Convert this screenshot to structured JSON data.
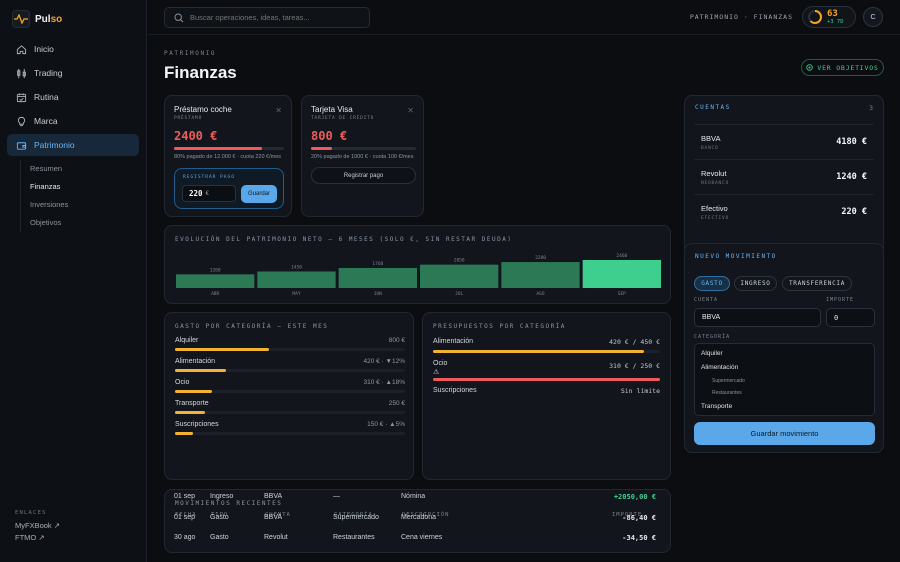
{
  "brand": {
    "name_prefix": "Pul",
    "name_suffix": "so"
  },
  "sidebar": {
    "nav": [
      {
        "label": "Inicio",
        "icon": "home-icon"
      },
      {
        "label": "Trading",
        "icon": "candlestick-icon"
      },
      {
        "label": "Rutina",
        "icon": "calendar-icon"
      },
      {
        "label": "Marca",
        "icon": "lightbulb-icon"
      },
      {
        "label": "Patrimonio",
        "icon": "wallet-icon",
        "active": true
      }
    ],
    "subnav": [
      {
        "label": "Resumen"
      },
      {
        "label": "Finanzas",
        "active": true
      },
      {
        "label": "Inversiones"
      },
      {
        "label": "Objetivos"
      }
    ],
    "links_title": "ENLACES",
    "links": [
      "MyFXBook ↗",
      "FTMO ↗"
    ]
  },
  "topbar": {
    "search_placeholder": "Buscar operaciones, ideas, tareas...",
    "breadcrumb": "PATRIMONIO · FINANZAS",
    "streak_value": "63",
    "streak_delta": "+3 7D",
    "streak_progress": 0.63,
    "avatar_initial": "C"
  },
  "header": {
    "eyebrow": "PATRIMONIO",
    "title": "Finanzas",
    "goals_button": "VER OBJETIVOS"
  },
  "debts": [
    {
      "name": "Préstamo coche",
      "kind": "PRÉSTAMO",
      "amount": "2400 €",
      "paid_fraction": 0.8,
      "detail": "80% pagado de 12.000 € · cuota 220 €/mes",
      "register_label": "REGISTRAR PAGO",
      "input_value": "220",
      "currency": "€",
      "save_label": "Guardar"
    },
    {
      "name": "Tarjeta Visa",
      "kind": "TARJETA DE CRÉDITO",
      "amount": "800 €",
      "paid_fraction": 0.2,
      "detail": "20% pagado de 1000 € · cuota 100 €/mes",
      "button_label": "Registrar pago"
    }
  ],
  "net_worth": {
    "title": "EVOLUCIÓN DEL PATRIMONIO NETO — 6 MESES (SOLO €, SIN RESTAR DEUDA)"
  },
  "chart_data": {
    "type": "bar",
    "title": "EVOLUCIÓN DEL PATRIMONIO NETO — 6 MESES (SOLO €, SIN RESTAR DEUDA)",
    "categories": [
      "ABR",
      "MAY",
      "JUN",
      "JUL",
      "AGO",
      "SEP"
    ],
    "values": [
      1200,
      1450,
      1760,
      2050,
      2280,
      2460
    ],
    "value_labels": [
      "1200",
      "1450",
      "1760",
      "2050",
      "2280",
      "2460"
    ],
    "colors": [
      "#2b7a55",
      "#2b7a55",
      "#2b7a55",
      "#2b7a55",
      "#2b7a55",
      "#3ecf8e"
    ],
    "xlabel": "",
    "ylabel": ""
  },
  "spending": {
    "title": "GASTO POR CATEGORÍA — ESTE MES",
    "rows": [
      {
        "name": "Alimentación",
        "value": "420 € · ▼12%",
        "fraction": 0.22
      },
      {
        "name": "Ocio",
        "value": "310 € · ▲18%",
        "fraction": 0.16
      },
      {
        "name": "Transporte",
        "value": "250 €",
        "fraction": 0.13
      },
      {
        "name": "Suscripciones",
        "value": "150 € · ▲5%",
        "fraction": 0.08
      }
    ],
    "first": {
      "name": "Alquiler",
      "value": "800 €",
      "fraction": 0.41
    }
  },
  "budgets": {
    "title": "PRESUPUESTOS POR CATEGORÍA",
    "rows": [
      {
        "name": "Alimentación",
        "value": "420 € / 450 €",
        "fraction": 0.93,
        "color": "#f2b430"
      },
      {
        "name": "Ocio",
        "value": "310 € / 250 €",
        "fraction": 1.0,
        "color": "#ef5b5b",
        "warning": "⚠"
      },
      {
        "name": "Suscripciones",
        "value": "Sin límite"
      }
    ]
  },
  "movements": {
    "title": "MOVIMIENTOS RECIENTES",
    "headers": [
      "FECHA",
      "TIPO",
      "CUENTA",
      "CATEGORÍA",
      "DESCRIPCIÓN",
      "IMPORTE"
    ],
    "rows": [
      {
        "date": "01 sep",
        "type": "Ingreso",
        "account": "BBVA",
        "category": "—",
        "description": "Nómina",
        "amount": "+2050,00 €",
        "color": "#3fcf8e"
      },
      {
        "date": "01 sep",
        "type": "Gasto",
        "account": "BBVA",
        "category": "Supermercado",
        "description": "Mercadona",
        "amount": "-86,40 €",
        "color": "#e6e9ee"
      },
      {
        "date": "30 ago",
        "type": "Gasto",
        "account": "Revolut",
        "category": "Restaurantes",
        "description": "Cena viernes",
        "amount": "-34,50 €",
        "color": "#e6e9ee"
      }
    ]
  },
  "accounts": {
    "title": "CUENTAS",
    "count": "3",
    "rows": [
      {
        "name": "BBVA",
        "kind": "BANCO",
        "balance": "4180 €"
      },
      {
        "name": "Revolut",
        "kind": "NEOBANCO",
        "balance": "1240 €"
      },
      {
        "name": "Efectivo",
        "kind": "EFECTIVO",
        "balance": "220 €"
      }
    ]
  },
  "new_movement": {
    "title": "NUEVO MOVIMIENTO",
    "tabs": [
      "GASTO",
      "INGRESO",
      "TRANSFERENCIA"
    ],
    "account_label": "CUENTA",
    "account_value": "BBVA",
    "amount_label": "IMPORTE",
    "amount_value": "0",
    "category_label": "CATEGORÍA",
    "categories": [
      "Alquiler",
      "Alimentación",
      "Supermercado",
      "Restaurantes",
      "Transporte"
    ],
    "save_label": "Guardar movimiento"
  },
  "colors": {
    "accent": "#5aa7ea",
    "positive": "#3fcf8e",
    "negative": "#ef5b5b",
    "warning": "#f2b430",
    "brand": "#f5a524"
  }
}
